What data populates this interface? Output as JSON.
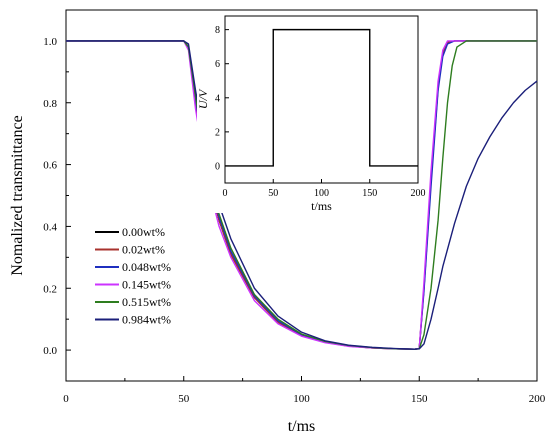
{
  "chart_data": [
    {
      "type": "line",
      "xlabel": "t/ms",
      "ylabel": "Nomalized transmittance",
      "xlim": [
        0,
        200
      ],
      "ylim": [
        -0.1,
        1.1
      ],
      "xticks": [
        0,
        50,
        100,
        150,
        200
      ],
      "xtick_labels": [
        "0",
        "50",
        "100",
        "150",
        "200"
      ],
      "yticks": [
        0.0,
        0.2,
        0.4,
        0.6,
        0.8,
        1.0
      ],
      "ytick_labels": [
        "0.0",
        "0.2",
        "0.4",
        "0.6",
        "0.8",
        "1.0"
      ],
      "legend_position": "lower-left",
      "series": [
        {
          "name": "0.00wt%",
          "color": "#000000",
          "x": [
            0,
            50,
            52,
            55,
            60,
            65,
            70,
            80,
            90,
            100,
            110,
            120,
            130,
            140,
            148,
            150,
            152,
            155,
            158,
            160,
            162,
            165,
            170,
            180,
            200
          ],
          "y": [
            1.0,
            1.0,
            0.98,
            0.8,
            0.57,
            0.42,
            0.31,
            0.17,
            0.09,
            0.048,
            0.025,
            0.013,
            0.007,
            0.004,
            0.003,
            0.005,
            0.2,
            0.55,
            0.85,
            0.96,
            0.995,
            1.0,
            1.0,
            1.0,
            1.0
          ]
        },
        {
          "name": "0.02wt%",
          "color": "#a8322d",
          "x": [
            0,
            50,
            52,
            55,
            60,
            65,
            70,
            80,
            90,
            100,
            110,
            120,
            130,
            140,
            148,
            150,
            152,
            155,
            158,
            160,
            162,
            165,
            170,
            180,
            200
          ],
          "y": [
            1.0,
            1.0,
            0.98,
            0.8,
            0.57,
            0.42,
            0.31,
            0.17,
            0.09,
            0.048,
            0.025,
            0.013,
            0.007,
            0.004,
            0.003,
            0.005,
            0.2,
            0.55,
            0.85,
            0.96,
            0.995,
            1.0,
            1.0,
            1.0,
            1.0
          ]
        },
        {
          "name": "0.048wt%",
          "color": "#1f2fbf",
          "x": [
            0,
            50,
            52,
            55,
            60,
            65,
            70,
            80,
            90,
            100,
            110,
            120,
            130,
            140,
            148,
            150,
            152,
            155,
            158,
            160,
            162,
            165,
            170,
            180,
            200
          ],
          "y": [
            1.0,
            1.0,
            0.98,
            0.81,
            0.58,
            0.43,
            0.32,
            0.175,
            0.095,
            0.05,
            0.027,
            0.014,
            0.008,
            0.004,
            0.003,
            0.005,
            0.19,
            0.53,
            0.84,
            0.95,
            0.99,
            1.0,
            1.0,
            1.0,
            1.0
          ]
        },
        {
          "name": "0.145wt%",
          "color": "#cc33ff",
          "x": [
            0,
            50,
            52,
            55,
            60,
            65,
            70,
            80,
            90,
            100,
            110,
            120,
            130,
            140,
            148,
            150,
            152,
            155,
            158,
            160,
            162,
            165,
            170,
            180,
            200
          ],
          "y": [
            1.0,
            1.0,
            0.97,
            0.78,
            0.55,
            0.4,
            0.3,
            0.16,
            0.085,
            0.045,
            0.024,
            0.012,
            0.007,
            0.004,
            0.003,
            0.005,
            0.22,
            0.58,
            0.87,
            0.97,
            1.0,
            1.0,
            1.0,
            1.0,
            1.0
          ]
        },
        {
          "name": "0.515wt%",
          "color": "#2e7d1f",
          "x": [
            0,
            50,
            52,
            55,
            60,
            65,
            70,
            80,
            90,
            100,
            110,
            120,
            130,
            140,
            148,
            150,
            152,
            155,
            158,
            160,
            162,
            164,
            166,
            170,
            180,
            200
          ],
          "y": [
            1.0,
            1.0,
            0.98,
            0.82,
            0.59,
            0.44,
            0.33,
            0.18,
            0.1,
            0.052,
            0.028,
            0.015,
            0.008,
            0.004,
            0.003,
            0.004,
            0.05,
            0.2,
            0.42,
            0.62,
            0.8,
            0.92,
            0.98,
            1.0,
            1.0,
            1.0
          ]
        },
        {
          "name": "0.984wt%",
          "color": "#1b1f7a",
          "x": [
            0,
            50,
            52,
            55,
            60,
            65,
            70,
            80,
            90,
            100,
            110,
            120,
            130,
            140,
            148,
            150,
            152,
            155,
            158,
            160,
            165,
            170,
            175,
            180,
            185,
            190,
            195,
            200
          ],
          "y": [
            1.0,
            1.0,
            0.99,
            0.84,
            0.62,
            0.47,
            0.36,
            0.2,
            0.11,
            0.058,
            0.03,
            0.016,
            0.009,
            0.005,
            0.003,
            0.004,
            0.02,
            0.1,
            0.2,
            0.27,
            0.41,
            0.53,
            0.62,
            0.69,
            0.75,
            0.8,
            0.84,
            0.87
          ]
        }
      ]
    },
    {
      "type": "line",
      "xlabel": "t/ms",
      "ylabel": "U/V",
      "xlim": [
        0,
        200
      ],
      "ylim": [
        -1,
        8.8
      ],
      "xticks": [
        0,
        50,
        100,
        150,
        200
      ],
      "xtick_labels": [
        "0",
        "50",
        "100",
        "150",
        "200"
      ],
      "yticks": [
        0,
        2,
        4,
        6,
        8
      ],
      "ytick_labels": [
        "0",
        "2",
        "4",
        "6",
        "8"
      ],
      "series": [
        {
          "color": "#000000",
          "x": [
            0,
            50,
            50,
            150,
            150,
            200
          ],
          "y": [
            0,
            0,
            8,
            8,
            0,
            0
          ]
        }
      ]
    }
  ]
}
